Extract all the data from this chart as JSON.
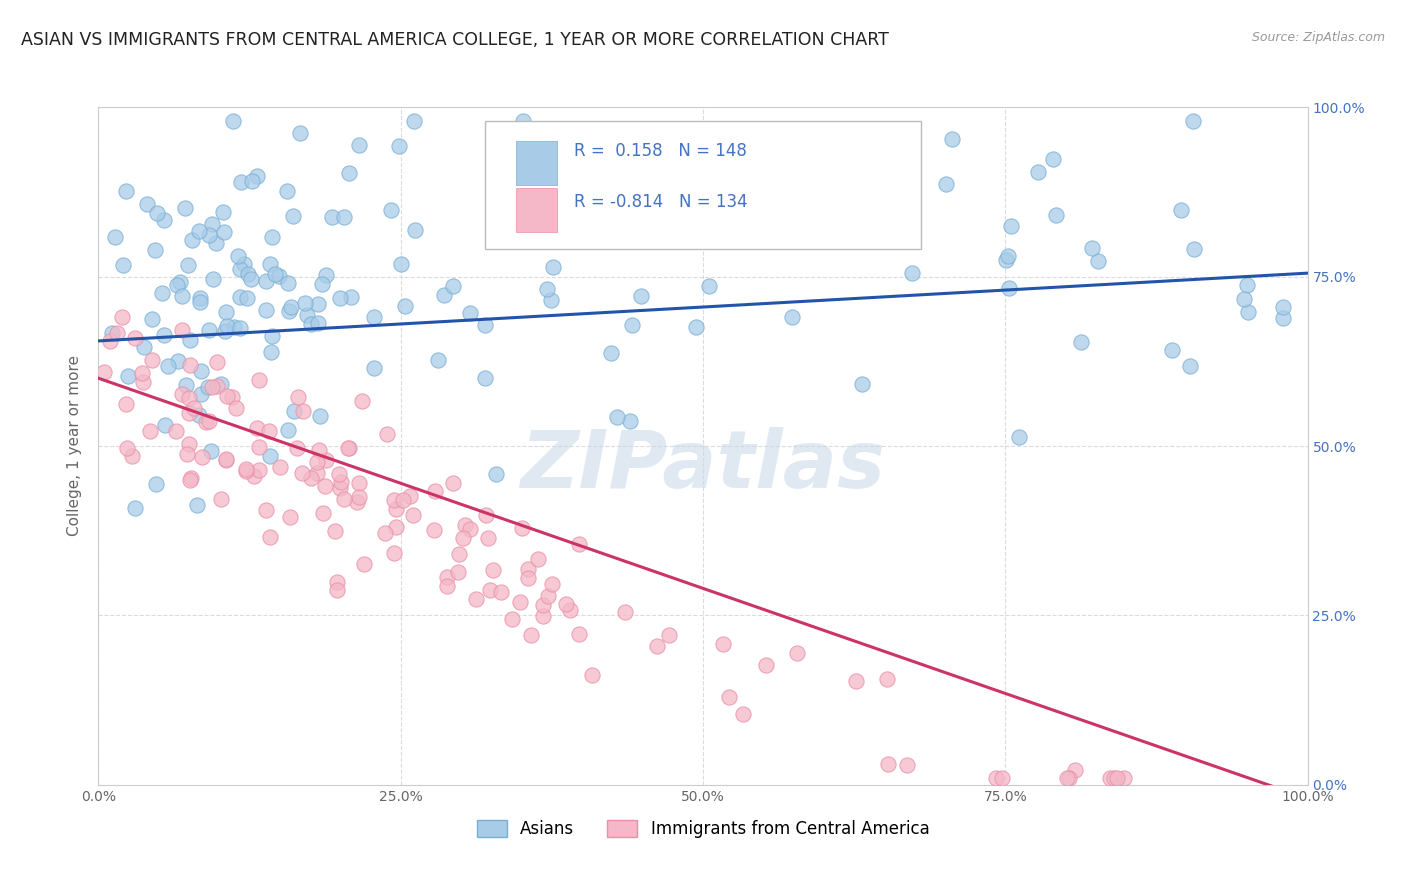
{
  "title": "ASIAN VS IMMIGRANTS FROM CENTRAL AMERICA COLLEGE, 1 YEAR OR MORE CORRELATION CHART",
  "source": "Source: ZipAtlas.com",
  "ylabel": "College, 1 year or more",
  "xlabel": "",
  "xlim": [
    0.0,
    1.0
  ],
  "ylim": [
    0.0,
    1.0
  ],
  "xtick_vals": [
    0.0,
    0.25,
    0.5,
    0.75,
    1.0
  ],
  "ytick_vals": [
    0.0,
    0.25,
    0.5,
    0.75,
    1.0
  ],
  "asian_color": "#a8cce8",
  "asian_edge": "#7aafd4",
  "immigrant_color": "#f4b8c8",
  "immigrant_edge": "#e890a8",
  "asian_line_color": "#2255aa",
  "immigrant_line_color": "#cc3366",
  "asian_R": 0.158,
  "asian_N": 148,
  "immigrant_R": -0.814,
  "immigrant_N": 134,
  "legend_label_asian": "Asians",
  "legend_label_immigrant": "Immigrants from Central America",
  "watermark": "ZIPatlas",
  "background_color": "#ffffff",
  "grid_color": "#cccccc",
  "title_fontsize": 12.5,
  "axis_label_fontsize": 11,
  "tick_fontsize": 10,
  "legend_fontsize": 12,
  "right_tick_color": "#4472c4",
  "asian_trend_start_y": 0.655,
  "asian_trend_end_y": 0.755,
  "immigrant_trend_start_y": 0.6,
  "immigrant_trend_end_y": -0.02
}
